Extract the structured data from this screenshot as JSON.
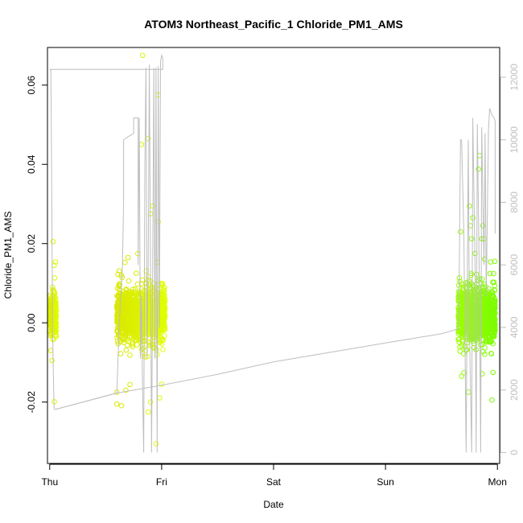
{
  "chart_data": {
    "type": "scatter",
    "title": "ATOM3 Northeast_Pacific_1 Chloride_PM1_AMS",
    "xlabel": "Date",
    "ylabel": "Chloride_PM1_AMS",
    "x_unit": "days since Thu 00:00",
    "xlim": [
      -0.02,
      4.02
    ],
    "ylim": [
      -0.0355,
      0.0695
    ],
    "x_ticks": [
      {
        "value": 0,
        "label": "Thu"
      },
      {
        "value": 1,
        "label": "Fri"
      },
      {
        "value": 2,
        "label": "Sat"
      },
      {
        "value": 3,
        "label": "Sun"
      },
      {
        "value": 4,
        "label": "Mon"
      }
    ],
    "y_ticks": [
      {
        "value": -0.02,
        "label": "-0.02"
      },
      {
        "value": 0.0,
        "label": "0.00"
      },
      {
        "value": 0.02,
        "label": "0.02"
      },
      {
        "value": 0.04,
        "label": "0.04"
      },
      {
        "value": 0.06,
        "label": "0.06"
      }
    ],
    "y2lim": [
      -350,
      12950
    ],
    "y2_ticks": [
      {
        "value": 0,
        "label": "0"
      },
      {
        "value": 2000,
        "label": "2000"
      },
      {
        "value": 4000,
        "label": "4000"
      },
      {
        "value": 6000,
        "label": "6000"
      },
      {
        "value": 8000,
        "label": "8000"
      },
      {
        "value": 10000,
        "label": "10000"
      },
      {
        "value": 12000,
        "label": "12000"
      }
    ],
    "series": [
      {
        "kind": "points",
        "color_start": "#d9e800",
        "color_end": "#e0ff00",
        "segments": [
          {
            "x_start": 0.0,
            "x_end": 0.06,
            "n": 260,
            "y_sd": 0.0035,
            "outliers": [
              [
                0.03,
                0.0205
              ],
              [
                0.02,
                -0.0095
              ],
              [
                0.04,
                0.0145
              ],
              [
                0.01,
                -0.007
              ]
            ]
          },
          {
            "x_start": 0.6,
            "x_end": 1.03,
            "n": 1400,
            "y_sd": 0.0045,
            "outliers": [
              [
                0.83,
                0.0675
              ],
              [
                0.88,
                0.0465
              ],
              [
                0.82,
                0.045
              ],
              [
                0.97,
                0.0575
              ],
              [
                0.92,
                0.0295
              ],
              [
                0.9,
                0.0275
              ],
              [
                0.6,
                -0.0175
              ],
              [
                0.6,
                -0.0205
              ],
              [
                0.95,
                -0.0305
              ],
              [
                1.0,
                -0.0155
              ],
              [
                0.88,
                -0.0225
              ],
              [
                0.9,
                -0.02
              ],
              [
                0.68,
                -0.017
              ],
              [
                0.7,
                0.0165
              ],
              [
                0.97,
                0.0255
              ]
            ]
          }
        ]
      },
      {
        "kind": "points",
        "color_start": "#9cff00",
        "color_end": "#7cfc00",
        "segments": [
          {
            "x_start": 3.65,
            "x_end": 3.98,
            "n": 1200,
            "y_sd": 0.0045,
            "outliers": [
              [
                3.67,
                0.023
              ],
              [
                3.75,
                0.0295
              ],
              [
                3.78,
                0.0265
              ],
              [
                3.76,
                0.0245
              ],
              [
                3.8,
                0.0175
              ],
              [
                3.77,
                0.0212
              ],
              [
                3.84,
                0.0422
              ],
              [
                3.83,
                0.0388
              ],
              [
                3.87,
                0.0245
              ],
              [
                3.86,
                0.0212
              ],
              [
                3.88,
                0.0212
              ],
              [
                3.74,
                -0.0175
              ],
              [
                3.95,
                -0.0195
              ],
              [
                3.96,
                -0.0125
              ],
              [
                3.68,
                -0.0135
              ]
            ]
          }
        ]
      },
      {
        "kind": "line",
        "axis": "right",
        "color": "#bebebe",
        "points": [
          [
            0.0,
            12250
          ],
          [
            0.01,
            12220
          ],
          [
            0.015,
            10000
          ],
          [
            0.02,
            7000
          ],
          [
            0.025,
            4000
          ],
          [
            0.03,
            3000
          ],
          [
            0.035,
            2000
          ],
          [
            0.04,
            1400
          ],
          [
            0.05,
            1380
          ],
          [
            0.6,
            1900
          ],
          [
            0.62,
            4000
          ],
          [
            0.65,
            6000
          ],
          [
            0.66,
            8000
          ],
          [
            0.66,
            10000
          ],
          [
            0.7,
            10100
          ],
          [
            0.75,
            10200
          ],
          [
            0.75,
            10700
          ],
          [
            0.79,
            10700
          ],
          [
            0.79,
            6000
          ],
          [
            0.8,
            10700
          ],
          [
            0.81,
            3000
          ],
          [
            0.82,
            5000
          ],
          [
            0.83,
            2000
          ],
          [
            0.84,
            0
          ],
          [
            0.85,
            9000
          ],
          [
            0.86,
            12300
          ],
          [
            0.87,
            3000
          ],
          [
            0.88,
            6000
          ],
          [
            0.89,
            12400
          ],
          [
            0.91,
            0
          ],
          [
            0.93,
            12300
          ],
          [
            0.94,
            3000
          ],
          [
            0.95,
            12300
          ],
          [
            0.96,
            0
          ],
          [
            0.97,
            12350
          ],
          [
            0.98,
            4000
          ],
          [
            0.99,
            12500
          ],
          [
            1.0,
            12700
          ],
          [
            1.01,
            12600
          ],
          [
            1.01,
            12250
          ],
          [
            0.85,
            12250
          ],
          [
            0.6,
            12250
          ],
          [
            0.3,
            12250
          ],
          [
            0.0,
            12250
          ]
        ],
        "segment2": [
          [
            0.05,
            1380
          ],
          [
            0.6,
            1900
          ],
          [
            1.0,
            2150
          ],
          [
            1.5,
            2500
          ],
          [
            2.0,
            2900
          ],
          [
            2.5,
            3200
          ],
          [
            3.0,
            3500
          ],
          [
            3.5,
            3800
          ],
          [
            3.65,
            3950
          ],
          [
            3.66,
            6000
          ],
          [
            3.67,
            10000
          ],
          [
            3.68,
            10000
          ],
          [
            3.7,
            7000
          ],
          [
            3.72,
            0
          ],
          [
            3.74,
            10000
          ],
          [
            3.75,
            4000
          ],
          [
            3.77,
            0
          ],
          [
            3.78,
            10700
          ],
          [
            3.8,
            6000
          ],
          [
            3.81,
            0
          ],
          [
            3.82,
            10500
          ],
          [
            3.84,
            5000
          ],
          [
            3.85,
            0
          ],
          [
            3.86,
            10400
          ],
          [
            3.88,
            6000
          ],
          [
            3.89,
            10200
          ],
          [
            3.9,
            5000
          ],
          [
            3.92,
            10300
          ],
          [
            3.93,
            11000
          ],
          [
            3.95,
            10800
          ],
          [
            3.97,
            10700
          ],
          [
            3.98,
            10600
          ],
          [
            3.98,
            7000
          ]
        ]
      }
    ]
  }
}
